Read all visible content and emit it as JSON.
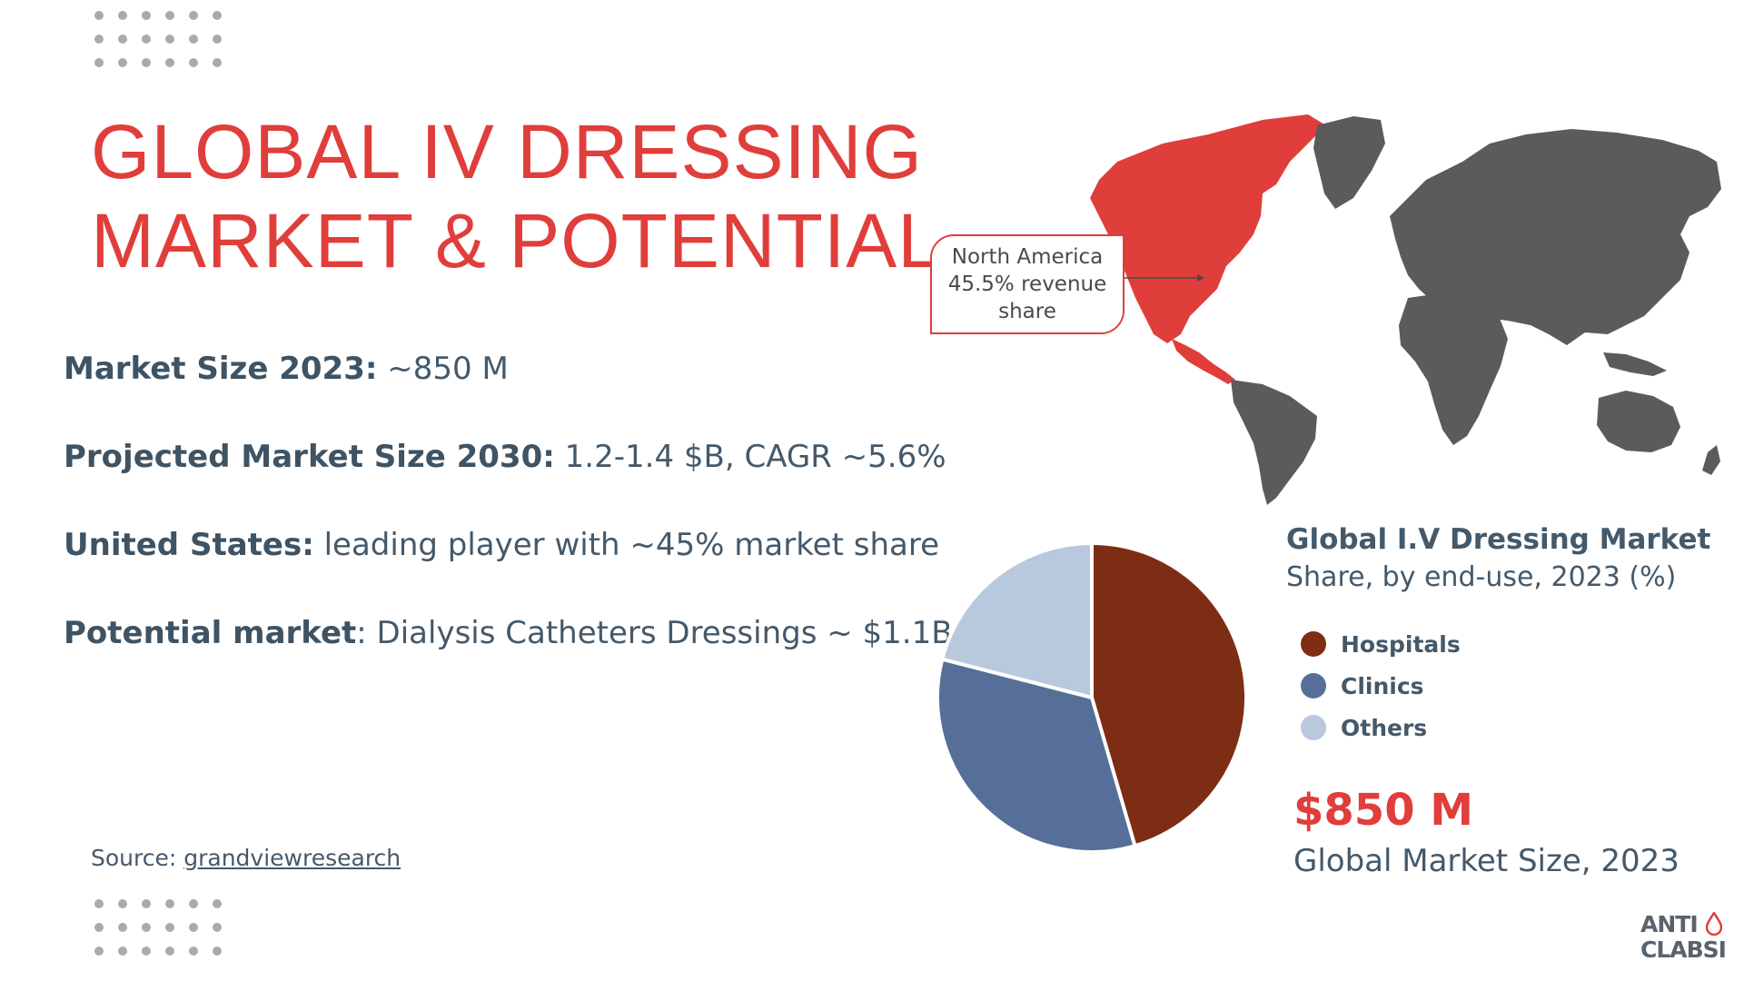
{
  "title": {
    "line1": "GLOBAL IV DRESSING",
    "line2": "MARKET & POTENTIAL"
  },
  "stats": [
    {
      "label": "Market Size 2023:",
      "value": " ~850 M"
    },
    {
      "label": "Projected  Market Size 2030:",
      "value": " 1.2-1.4 $B, CAGR ~5.6%"
    },
    {
      "label": "United States:",
      "value": " leading player with ~45% market share"
    },
    {
      "label": "Potential market",
      "value": ": Dialysis Catheters Dressings ~ $1.1B"
    }
  ],
  "source": {
    "prefix": "Source: ",
    "link_text": "grandviewresearch"
  },
  "callout": {
    "line1": "North America",
    "line2": "45.5% revenue",
    "line3": "share"
  },
  "legend": {
    "title": "Global I.V Dressing Market",
    "subtitle": "Share, by end-use, 2023 (%)"
  },
  "chart_data": {
    "type": "pie",
    "title": "Global I.V Dressing Market",
    "subtitle": "Share, by end-use, 2023 (%)",
    "categories": [
      "Hospitals",
      "Clinics",
      "Others"
    ],
    "values": [
      45.5,
      33.5,
      21
    ],
    "colors": [
      "#7d2d13",
      "#566f98",
      "#b8c8dd"
    ],
    "legend_position": "right"
  },
  "market_size": {
    "value": "$850 M",
    "caption": "Global Market Size, 2023"
  },
  "logo": {
    "line1": "ANTI",
    "line2": "CLABSI"
  },
  "colors": {
    "accent": "#e03e3b",
    "text": "#44596a",
    "map_grey": "#5b5b5b"
  },
  "icons": {
    "map": "world-map-icon",
    "logo_drop": "blood-drop-icon"
  }
}
